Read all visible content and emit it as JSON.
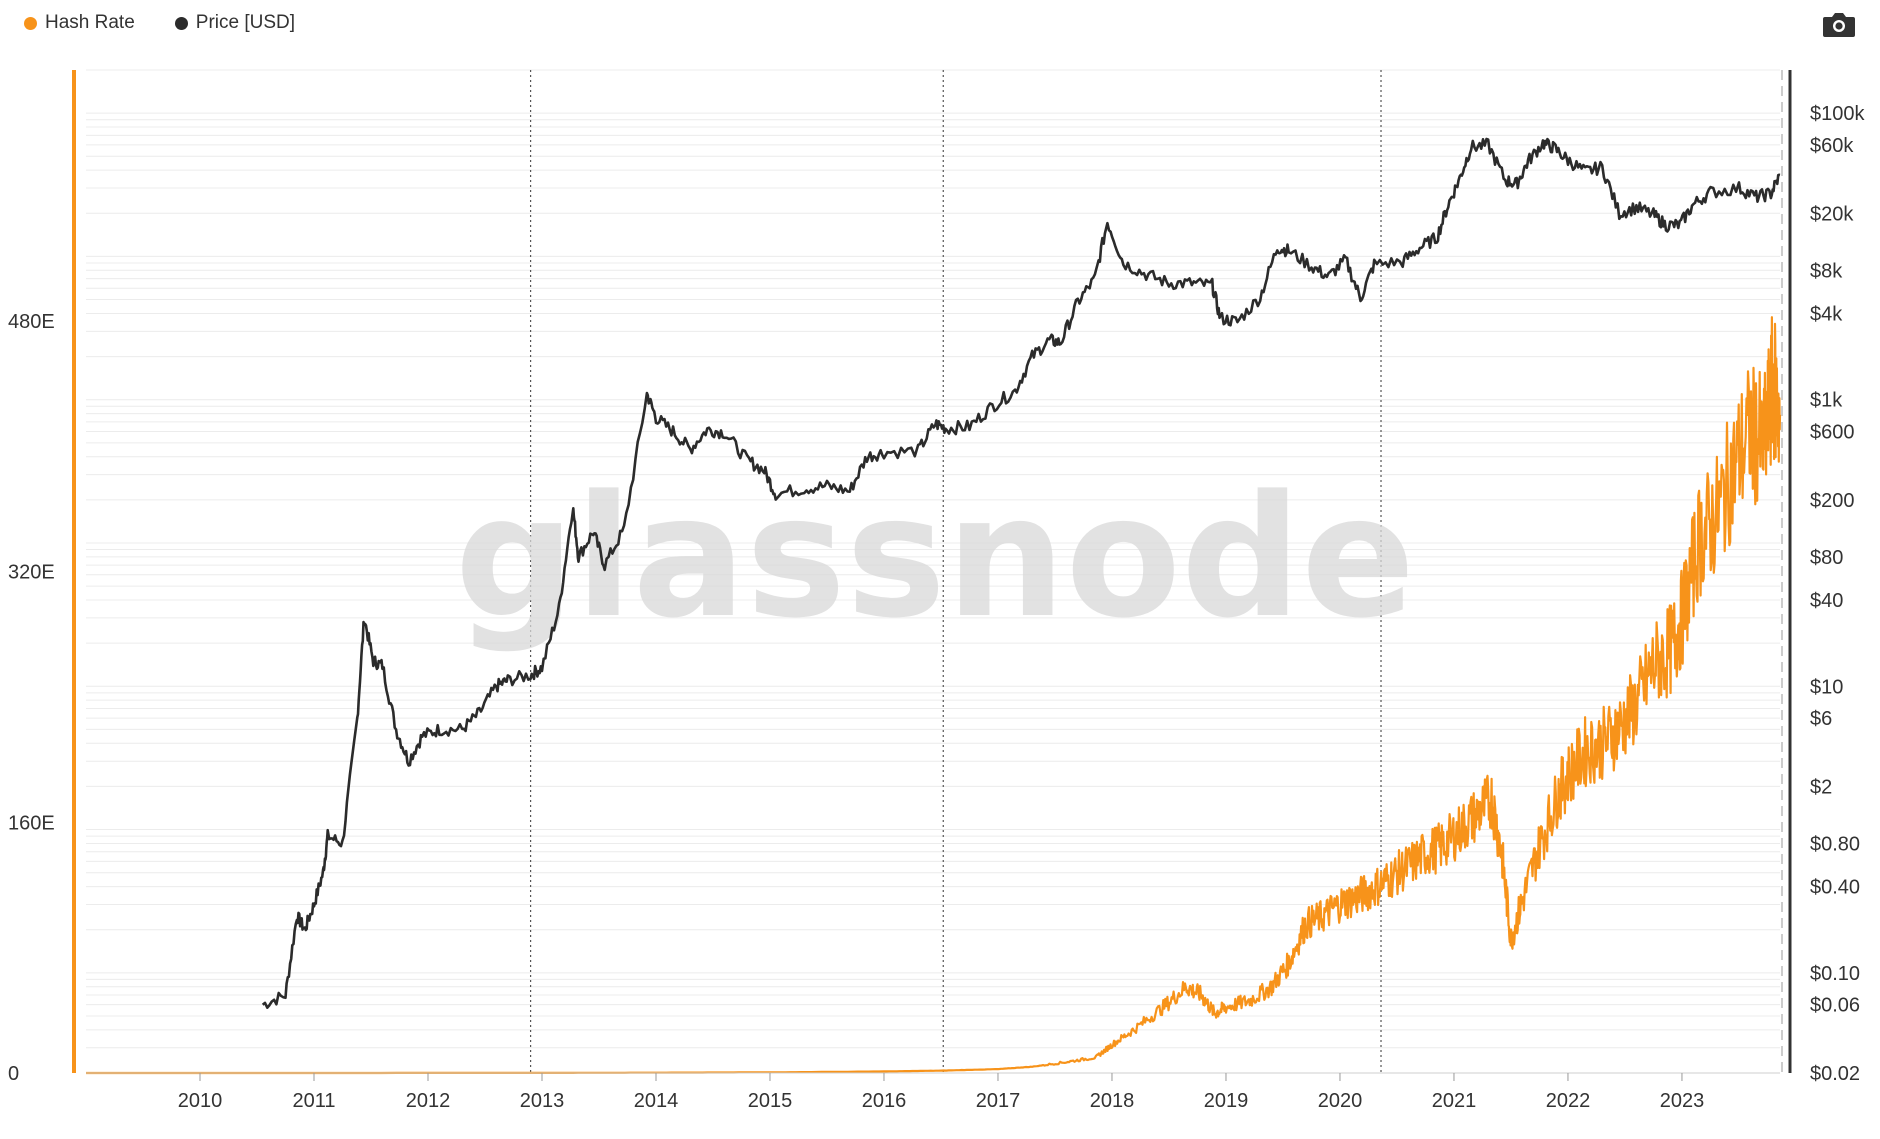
{
  "legend": {
    "hash_rate": "Hash Rate",
    "price": "Price [USD]"
  },
  "watermark": "glassnode",
  "colors": {
    "hash_rate": "#f7931a",
    "price": "#2b2b2b",
    "grid": "#ececec",
    "axis_left": "#f7931a",
    "axis_right": "#333333"
  },
  "icons": {
    "camera": "camera-icon"
  },
  "chart_data": {
    "type": "line",
    "title": "",
    "x_axis": {
      "type": "time",
      "range": [
        2009.0,
        2023.86
      ],
      "ticks": [
        "2010",
        "2011",
        "2012",
        "2013",
        "2014",
        "2015",
        "2016",
        "2017",
        "2018",
        "2019",
        "2020",
        "2021",
        "2022",
        "2023"
      ]
    },
    "y_left": {
      "label": "",
      "unit": "E",
      "range": [
        0,
        640
      ],
      "ticks": [
        {
          "value": 0,
          "label": "0"
        },
        {
          "value": 160,
          "label": "160E"
        },
        {
          "value": 320,
          "label": "320E"
        },
        {
          "value": 480,
          "label": "480E"
        }
      ]
    },
    "y_right": {
      "label": "",
      "scale": "log",
      "range": [
        0.02,
        200000
      ],
      "ticks": [
        {
          "value": 100000,
          "label": "$100k"
        },
        {
          "value": 60000,
          "label": "$60k"
        },
        {
          "value": 20000,
          "label": "$20k"
        },
        {
          "value": 8000,
          "label": "$8k"
        },
        {
          "value": 4000,
          "label": "$4k"
        },
        {
          "value": 1000,
          "label": "$1k"
        },
        {
          "value": 600,
          "label": "$600"
        },
        {
          "value": 200,
          "label": "$200"
        },
        {
          "value": 80,
          "label": "$80"
        },
        {
          "value": 40,
          "label": "$40"
        },
        {
          "value": 10,
          "label": "$10"
        },
        {
          "value": 6,
          "label": "$6"
        },
        {
          "value": 2,
          "label": "$2"
        },
        {
          "value": 0.8,
          "label": "$0.80"
        },
        {
          "value": 0.4,
          "label": "$0.40"
        },
        {
          "value": 0.1,
          "label": "$0.10"
        },
        {
          "value": 0.06,
          "label": "$0.06"
        },
        {
          "value": 0.02,
          "label": "$0.02"
        }
      ]
    },
    "halvings": [
      2012.9,
      2016.52,
      2020.36
    ],
    "series": [
      {
        "name": "Price [USD]",
        "axis": "right",
        "points": [
          [
            2010.55,
            0.06
          ],
          [
            2010.75,
            0.07
          ],
          [
            2010.85,
            0.25
          ],
          [
            2010.92,
            0.2
          ],
          [
            2011.0,
            0.3
          ],
          [
            2011.08,
            0.5
          ],
          [
            2011.12,
            0.9
          ],
          [
            2011.25,
            0.8
          ],
          [
            2011.38,
            6
          ],
          [
            2011.44,
            30
          ],
          [
            2011.52,
            15
          ],
          [
            2011.6,
            14
          ],
          [
            2011.72,
            5
          ],
          [
            2011.83,
            3
          ],
          [
            2011.95,
            4.5
          ],
          [
            2012.1,
            5
          ],
          [
            2012.3,
            5
          ],
          [
            2012.45,
            6.5
          ],
          [
            2012.6,
            10
          ],
          [
            2012.7,
            11
          ],
          [
            2012.9,
            12
          ],
          [
            2013.0,
            13.5
          ],
          [
            2013.15,
            35
          ],
          [
            2013.27,
            180
          ],
          [
            2013.32,
            80
          ],
          [
            2013.45,
            120
          ],
          [
            2013.55,
            70
          ],
          [
            2013.72,
            125
          ],
          [
            2013.92,
            1100
          ],
          [
            2014.0,
            750
          ],
          [
            2014.15,
            600
          ],
          [
            2014.3,
            450
          ],
          [
            2014.45,
            620
          ],
          [
            2014.6,
            590
          ],
          [
            2014.8,
            380
          ],
          [
            2014.95,
            320
          ],
          [
            2015.05,
            220
          ],
          [
            2015.3,
            240
          ],
          [
            2015.5,
            250
          ],
          [
            2015.7,
            230
          ],
          [
            2015.85,
            400
          ],
          [
            2016.0,
            430
          ],
          [
            2016.3,
            440
          ],
          [
            2016.45,
            680
          ],
          [
            2016.55,
            630
          ],
          [
            2016.75,
            650
          ],
          [
            2016.95,
            900
          ],
          [
            2017.15,
            1150
          ],
          [
            2017.3,
            2000
          ],
          [
            2017.45,
            2600
          ],
          [
            2017.55,
            2500
          ],
          [
            2017.7,
            4800
          ],
          [
            2017.85,
            7000
          ],
          [
            2017.96,
            17500
          ],
          [
            2018.1,
            9000
          ],
          [
            2018.3,
            7500
          ],
          [
            2018.5,
            6500
          ],
          [
            2018.7,
            6500
          ],
          [
            2018.88,
            6300
          ],
          [
            2018.95,
            3700
          ],
          [
            2019.1,
            3500
          ],
          [
            2019.3,
            5200
          ],
          [
            2019.45,
            11500
          ],
          [
            2019.55,
            11000
          ],
          [
            2019.75,
            8500
          ],
          [
            2019.9,
            7200
          ],
          [
            2020.05,
            9500
          ],
          [
            2020.18,
            5100
          ],
          [
            2020.3,
            8800
          ],
          [
            2020.55,
            9200
          ],
          [
            2020.7,
            11500
          ],
          [
            2020.85,
            13500
          ],
          [
            2020.95,
            23000
          ],
          [
            2021.05,
            35000
          ],
          [
            2021.15,
            58000
          ],
          [
            2021.3,
            60000
          ],
          [
            2021.45,
            34000
          ],
          [
            2021.55,
            32000
          ],
          [
            2021.65,
            46000
          ],
          [
            2021.78,
            62000
          ],
          [
            2021.88,
            57000
          ],
          [
            2022.0,
            47000
          ],
          [
            2022.15,
            39000
          ],
          [
            2022.3,
            42000
          ],
          [
            2022.45,
            20000
          ],
          [
            2022.6,
            22000
          ],
          [
            2022.75,
            19500
          ],
          [
            2022.86,
            16500
          ],
          [
            2022.98,
            16600
          ],
          [
            2023.1,
            23000
          ],
          [
            2023.25,
            28000
          ],
          [
            2023.5,
            30000
          ],
          [
            2023.65,
            26000
          ],
          [
            2023.78,
            27500
          ],
          [
            2023.86,
            37000
          ]
        ]
      },
      {
        "name": "Hash Rate",
        "axis": "left",
        "points": [
          [
            2009.0,
            0
          ],
          [
            2013.0,
            0.05
          ],
          [
            2014.0,
            0.2
          ],
          [
            2015.0,
            0.4
          ],
          [
            2016.0,
            1
          ],
          [
            2016.5,
            1.5
          ],
          [
            2017.0,
            2.5
          ],
          [
            2017.3,
            4
          ],
          [
            2017.6,
            7
          ],
          [
            2017.86,
            10
          ],
          [
            2018.0,
            18
          ],
          [
            2018.2,
            28
          ],
          [
            2018.45,
            42
          ],
          [
            2018.65,
            55
          ],
          [
            2018.78,
            50
          ],
          [
            2018.9,
            38
          ],
          [
            2019.0,
            42
          ],
          [
            2019.2,
            46
          ],
          [
            2019.4,
            55
          ],
          [
            2019.55,
            70
          ],
          [
            2019.7,
            95
          ],
          [
            2019.85,
            100
          ],
          [
            2020.0,
            108
          ],
          [
            2020.15,
            112
          ],
          [
            2020.3,
            118
          ],
          [
            2020.45,
            125
          ],
          [
            2020.6,
            132
          ],
          [
            2020.75,
            140
          ],
          [
            2020.9,
            145
          ],
          [
            2021.05,
            155
          ],
          [
            2021.2,
            165
          ],
          [
            2021.33,
            175
          ],
          [
            2021.42,
            140
          ],
          [
            2021.5,
            85
          ],
          [
            2021.6,
            110
          ],
          [
            2021.75,
            145
          ],
          [
            2021.9,
            175
          ],
          [
            2022.0,
            190
          ],
          [
            2022.15,
            205
          ],
          [
            2022.3,
            210
          ],
          [
            2022.45,
            220
          ],
          [
            2022.6,
            235
          ],
          [
            2022.75,
            260
          ],
          [
            2022.9,
            270
          ],
          [
            2023.0,
            290
          ],
          [
            2023.15,
            340
          ],
          [
            2023.3,
            355
          ],
          [
            2023.45,
            385
          ],
          [
            2023.6,
            410
          ],
          [
            2023.72,
            400
          ],
          [
            2023.8,
            440
          ],
          [
            2023.86,
            420
          ]
        ]
      }
    ]
  }
}
